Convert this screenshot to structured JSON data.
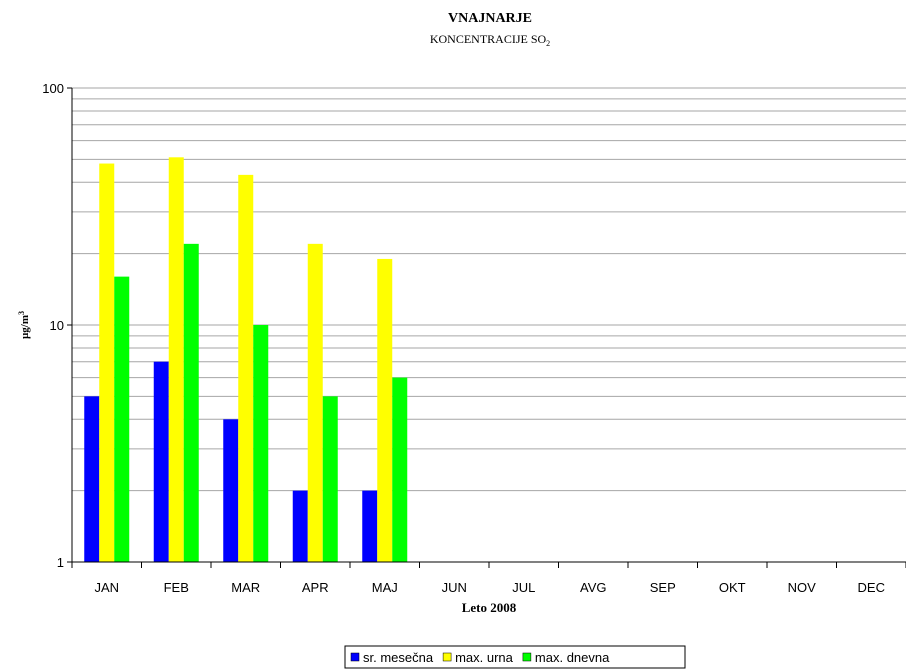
{
  "chart_data": {
    "type": "bar",
    "title": "VNAJNARJE",
    "subtitle_main": "KONCENTRACIJE  SO",
    "subtitle_sub": "2",
    "ylabel_main": "µg/m",
    "ylabel_sup": "3",
    "xlabel": "Leto 2008",
    "yscale": "log",
    "ylim": [
      1,
      100
    ],
    "yticks": [
      "1",
      "10",
      "100"
    ],
    "grid": true,
    "legend_position": "bottom",
    "categories": [
      "JAN",
      "FEB",
      "MAR",
      "APR",
      "MAJ",
      "JUN",
      "JUL",
      "AVG",
      "SEP",
      "OKT",
      "NOV",
      "DEC"
    ],
    "series": [
      {
        "name": "sr. mesečna",
        "color": "#0000ff",
        "values": [
          5,
          7,
          4,
          2,
          2,
          null,
          null,
          null,
          null,
          null,
          null,
          null
        ]
      },
      {
        "name": "max. urna",
        "color": "#ffff00",
        "values": [
          48,
          51,
          43,
          22,
          19,
          null,
          null,
          null,
          null,
          null,
          null,
          null
        ]
      },
      {
        "name": "max. dnevna",
        "color": "#00ff00",
        "values": [
          16,
          22,
          10,
          5,
          6,
          null,
          null,
          null,
          null,
          null,
          null,
          null
        ]
      }
    ]
  }
}
